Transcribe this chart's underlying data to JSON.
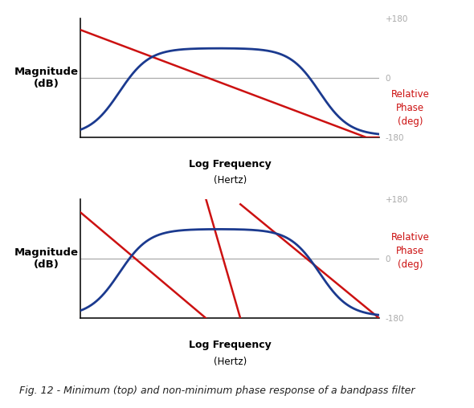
{
  "fig_width": 5.9,
  "fig_height": 5.08,
  "dpi": 100,
  "bg_color": "#ffffff",
  "blue_color": "#1b3a8f",
  "red_color": "#cc1111",
  "gray_color": "#aaaaaa",
  "axis_color": "#111111",
  "title_text": "Log Frequency",
  "title_sub": "(Hertz)",
  "ylabel_mag": "Magnitude\n(dB)",
  "ylabel_phase": "Relative\nPhase\n(deg)",
  "caption": "Fig. 12 - Minimum (top) and non-minimum phase response of a bandpass filter",
  "caption_fontsize": 9,
  "label_fontsize": 9,
  "tick_fontsize": 7.5,
  "ylabel_fontsize": 9.5
}
